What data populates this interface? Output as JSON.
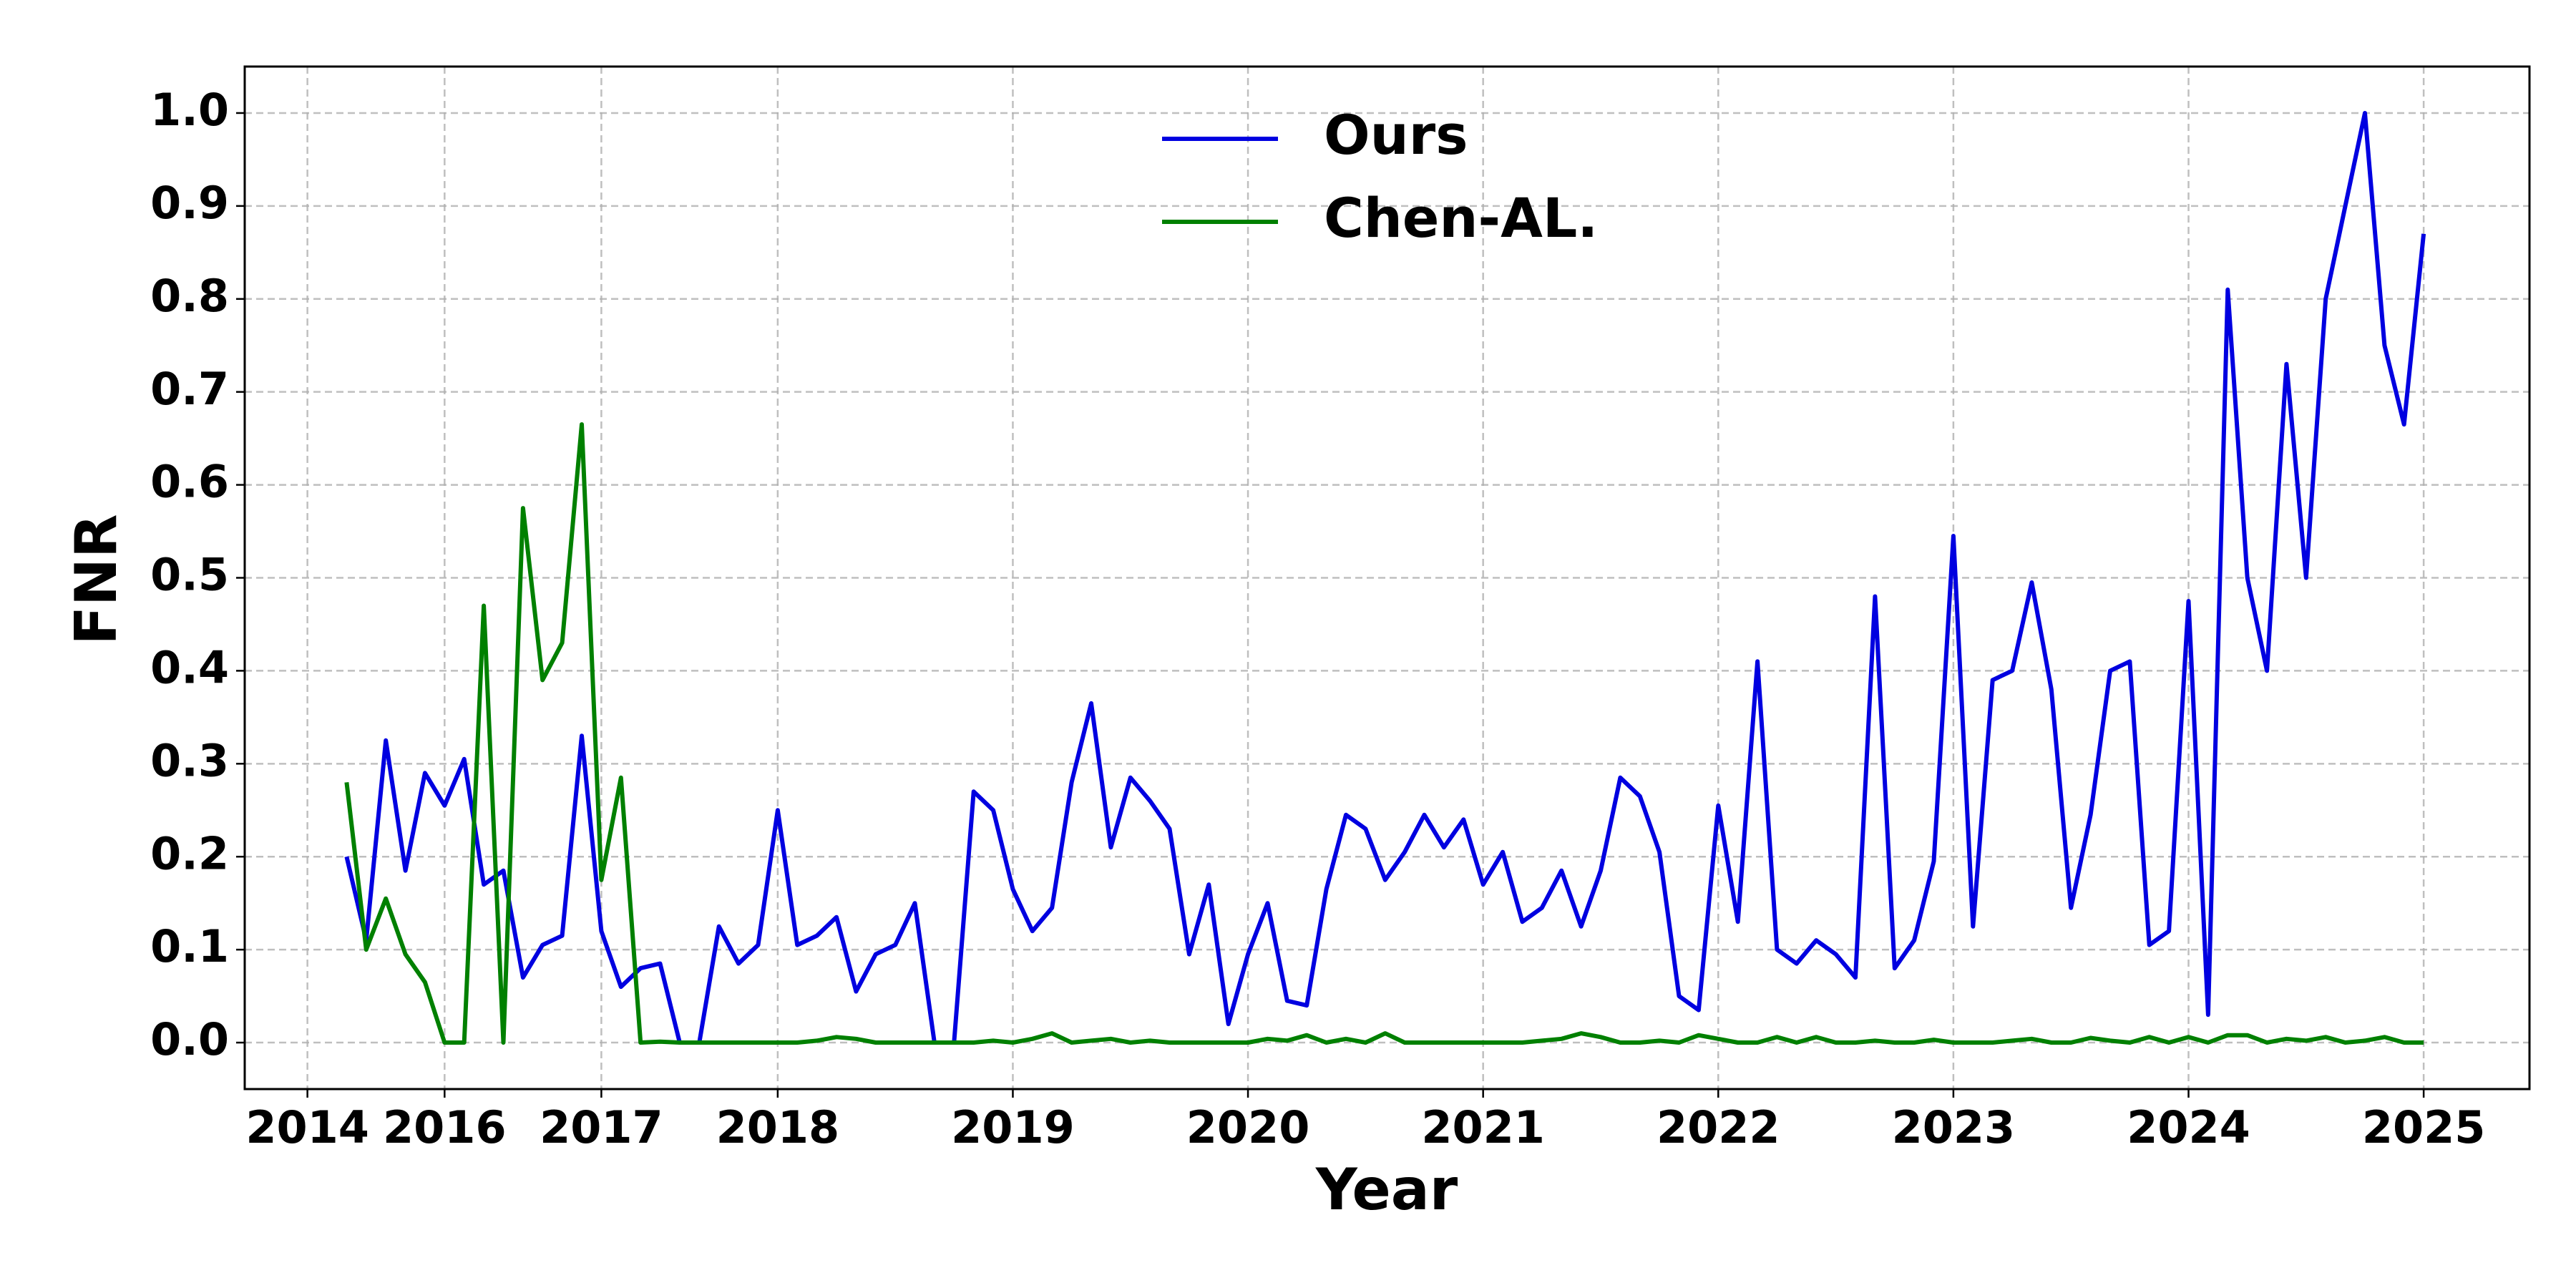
{
  "chart_data": {
    "type": "line",
    "x_label": "Year",
    "y_label": "FNR",
    "xlim": [
      -5.2,
      111.4
    ],
    "ylim": [
      -0.05,
      1.05
    ],
    "xticks": [
      {
        "value": -2,
        "label": "2014"
      },
      {
        "value": 5,
        "label": "2016"
      },
      {
        "value": 13,
        "label": "2017"
      },
      {
        "value": 22,
        "label": "2018"
      },
      {
        "value": 34,
        "label": "2019"
      },
      {
        "value": 46,
        "label": "2020"
      },
      {
        "value": 58,
        "label": "2021"
      },
      {
        "value": 70,
        "label": "2022"
      },
      {
        "value": 82,
        "label": "2023"
      },
      {
        "value": 94,
        "label": "2024"
      },
      {
        "value": 106,
        "label": "2025"
      }
    ],
    "yticks": [
      {
        "value": 0,
        "label": "0.0"
      },
      0.1,
      0.2,
      0.3,
      0.4,
      0.5,
      0.6,
      0.7,
      0.8,
      0.9,
      {
        "value": 1,
        "label": "1.0"
      }
    ],
    "grid": true,
    "legend": "upper center",
    "series": [
      {
        "name": "Ours",
        "color": "#0000e0",
        "values": [
          0.2,
          0.11,
          0.325,
          0.185,
          0.29,
          0.255,
          0.305,
          0.17,
          0.185,
          0.07,
          0.105,
          0.115,
          0.33,
          0.12,
          0.06,
          0.08,
          0.085,
          0,
          0,
          0.125,
          0.085,
          0.105,
          0.25,
          0.105,
          0.115,
          0.135,
          0.055,
          0.095,
          0.105,
          0.15,
          0,
          0,
          0.27,
          0.25,
          0.165,
          0.12,
          0.145,
          0.28,
          0.365,
          0.21,
          0.285,
          0.26,
          0.23,
          0.095,
          0.17,
          0.02,
          0.095,
          0.15,
          0.045,
          0.04,
          0.165,
          0.245,
          0.23,
          0.175,
          0.205,
          0.245,
          0.21,
          0.24,
          0.17,
          0.205,
          0.13,
          0.145,
          0.185,
          0.125,
          0.185,
          0.285,
          0.265,
          0.205,
          0.05,
          0.035,
          0.255,
          0.13,
          0.41,
          0.1,
          0.085,
          0.11,
          0.095,
          0.07,
          0.48,
          0.08,
          0.11,
          0.195,
          0.545,
          0.125,
          0.39,
          0.4,
          0.495,
          0.38,
          0.145,
          0.245,
          0.4,
          0.41,
          0.105,
          0.12,
          0.475,
          0.03,
          0.81,
          0.5,
          0.4,
          0.73,
          0.5,
          0.8,
          0.9,
          1.0,
          0.75,
          0.665,
          0.87
        ]
      },
      {
        "name": "Chen-AL.",
        "color": "#008000",
        "values": [
          0.28,
          0.1,
          0.155,
          0.095,
          0.065,
          0,
          0,
          0.47,
          0,
          0.575,
          0.39,
          0.43,
          0.665,
          0.175,
          0.285,
          0,
          0.001,
          0,
          0,
          0,
          0,
          0,
          0,
          0,
          0.002,
          0.006,
          0.004,
          0,
          0,
          0,
          0,
          0,
          0,
          0.002,
          0,
          0.004,
          0.01,
          0,
          0.002,
          0.004,
          0,
          0.002,
          0,
          0,
          0,
          0,
          0,
          0.004,
          0.002,
          0.008,
          0,
          0.004,
          0,
          0.01,
          0,
          0,
          0,
          0,
          0,
          0,
          0,
          0.002,
          0.004,
          0.01,
          0.006,
          0,
          0,
          0.002,
          0,
          0.008,
          0.004,
          0,
          0,
          0.006,
          0,
          0.006,
          0,
          0,
          0.002,
          0,
          0,
          0.003,
          0,
          0,
          0,
          0.002,
          0.004,
          0,
          0,
          0.005,
          0.002,
          0,
          0.006,
          0,
          0.006,
          0,
          0.008,
          0.008,
          0,
          0.004,
          0.002,
          0.006,
          0,
          0.002,
          0.006,
          0,
          0
        ]
      }
    ]
  }
}
